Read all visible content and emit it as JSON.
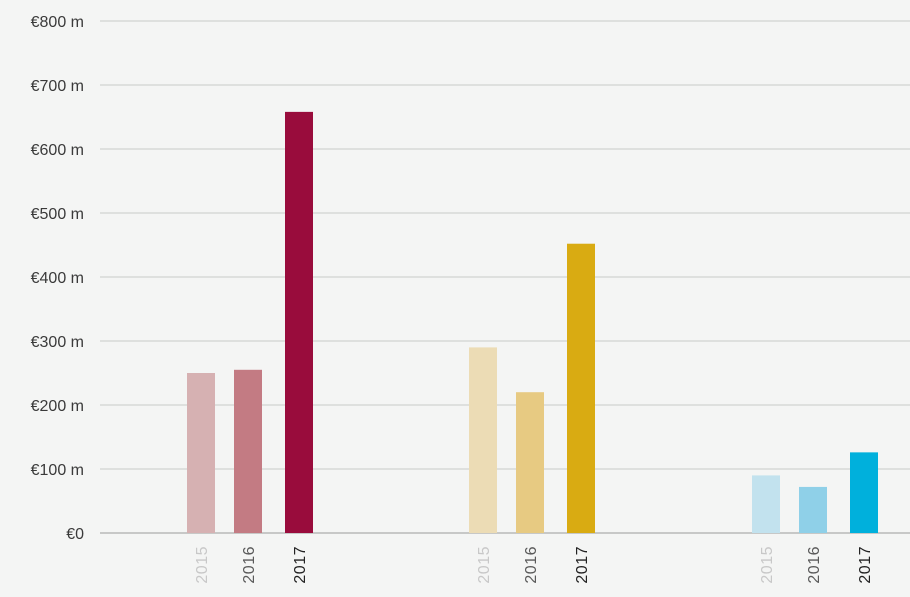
{
  "chart_data": {
    "type": "bar",
    "ylim": [
      0,
      800
    ],
    "yticks": [
      {
        "value": 0,
        "label": "€0"
      },
      {
        "value": 100,
        "label": "€100 m"
      },
      {
        "value": 200,
        "label": "€200 m"
      },
      {
        "value": 300,
        "label": "€300 m"
      },
      {
        "value": 400,
        "label": "€400 m"
      },
      {
        "value": 500,
        "label": "€500 m"
      },
      {
        "value": 600,
        "label": "€600 m"
      },
      {
        "value": 700,
        "label": "€700 m"
      },
      {
        "value": 800,
        "label": "€800 m"
      }
    ],
    "grid": true,
    "legend": "none",
    "groups": [
      {
        "bars": [
          {
            "year": "2015",
            "value": 250,
            "color": "#d6b1b2",
            "label_color": "#c8c8c8"
          },
          {
            "year": "2016",
            "value": 255,
            "color": "#c37b83",
            "label_color": "#5a5a5a"
          },
          {
            "year": "2017",
            "value": 658,
            "color": "#990c3c",
            "label_color": "#222222"
          }
        ]
      },
      {
        "bars": [
          {
            "year": "2015",
            "value": 290,
            "color": "#ecdcb5",
            "label_color": "#c8c8c8"
          },
          {
            "year": "2016",
            "value": 220,
            "color": "#e7ca82",
            "label_color": "#5a5a5a"
          },
          {
            "year": "2017",
            "value": 452,
            "color": "#d9ab12",
            "label_color": "#222222"
          }
        ]
      },
      {
        "bars": [
          {
            "year": "2015",
            "value": 90,
            "color": "#c2e2ee",
            "label_color": "#c8c8c8"
          },
          {
            "year": "2016",
            "value": 72,
            "color": "#8fd0e8",
            "label_color": "#5a5a5a"
          },
          {
            "year": "2017",
            "value": 126,
            "color": "#00b0dc",
            "label_color": "#222222"
          }
        ]
      }
    ]
  }
}
